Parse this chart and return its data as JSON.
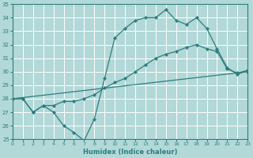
{
  "xlabel": "Humidex (Indice chaleur)",
  "background_color": "#b2d8d8",
  "grid_color": "#ffffff",
  "line_color": "#2e7d7d",
  "xlim": [
    0,
    23
  ],
  "ylim": [
    25,
    35
  ],
  "xtick_labels": [
    "0",
    "1",
    "2",
    "3",
    "4",
    "5",
    "6",
    "7",
    "8",
    "9",
    "10",
    "11",
    "12",
    "13",
    "14",
    "15",
    "16",
    "17",
    "18",
    "19",
    "20",
    "21",
    "22",
    "23"
  ],
  "xticks": [
    0,
    1,
    2,
    3,
    4,
    5,
    6,
    7,
    8,
    9,
    10,
    11,
    12,
    13,
    14,
    15,
    16,
    17,
    18,
    19,
    20,
    21,
    22,
    23
  ],
  "yticks": [
    25,
    26,
    27,
    28,
    29,
    30,
    31,
    32,
    33,
    34,
    35
  ],
  "series1_x": [
    0,
    1,
    2,
    3,
    4,
    5,
    6,
    7,
    8,
    9,
    10,
    11,
    12,
    13,
    14,
    15,
    16,
    17,
    18,
    19,
    20,
    21,
    22,
    23
  ],
  "series1_y": [
    28,
    28,
    27,
    27.5,
    27,
    26,
    25.5,
    24.9,
    26.5,
    29.5,
    32.5,
    33.2,
    33.8,
    34,
    34,
    34.6,
    33.8,
    33.5,
    34,
    33.2,
    31.7,
    30.3,
    29.8,
    30.1
  ],
  "series2_x": [
    0,
    1,
    2,
    3,
    4,
    5,
    6,
    7,
    8,
    9,
    10,
    11,
    12,
    13,
    14,
    15,
    16,
    17,
    18,
    19,
    20,
    21,
    22,
    23
  ],
  "series2_y": [
    28,
    28,
    27,
    27.5,
    27.5,
    27.8,
    27.8,
    28.0,
    28.3,
    28.8,
    29.2,
    29.5,
    30.0,
    30.5,
    31.0,
    31.3,
    31.5,
    31.8,
    32.0,
    31.7,
    31.5,
    30.2,
    29.9,
    30.1
  ],
  "series3_x": [
    0,
    23
  ],
  "series3_y": [
    28,
    30
  ]
}
